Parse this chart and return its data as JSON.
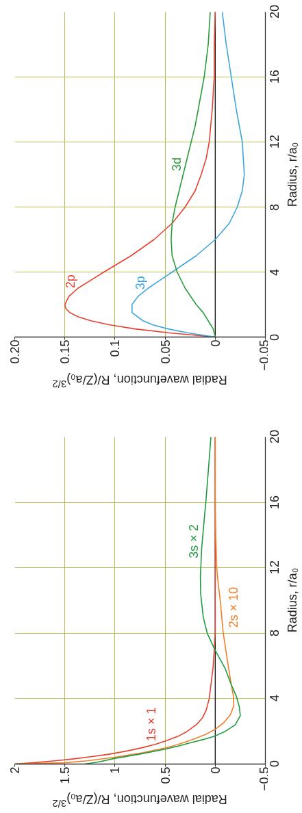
{
  "chart_data": [
    {
      "type": "line",
      "xlabel": "Radial wavefunction, R/(Z/a₀)$^{3/2}$",
      "ylabel": "Radius, r/a₀",
      "xlim": [
        0.2,
        -0.05
      ],
      "ylim": [
        0,
        20
      ],
      "xticks": [
        {
          "value": 0.2,
          "label": "0.20"
        },
        0.15,
        0.1,
        0.05,
        0,
        {
          "value": -0.05,
          "label": "−0.05"
        }
      ],
      "yticks": [
        0,
        4,
        8,
        12,
        16,
        20
      ],
      "grid": true,
      "ref_lines": [
        {
          "axis": "x",
          "value": 0,
          "color": "#111111"
        }
      ],
      "series": [
        {
          "name": "2p",
          "color": "#e8402f",
          "x": [
            0,
            0.045,
            0.08,
            0.105,
            0.124,
            0.137,
            0.145,
            0.149,
            0.15,
            0.146,
            0.137,
            0.124,
            0.111,
            0.084,
            0.061,
            0.043,
            0.03,
            0.02,
            0.014,
            0.009,
            0.006,
            0.003,
            0.001,
            0.001,
            0
          ],
          "values": [
            0,
            0.25,
            0.5,
            0.75,
            1,
            1.25,
            1.5,
            1.75,
            2,
            2.5,
            3,
            3.5,
            4,
            5,
            6,
            7,
            8,
            9,
            10,
            11,
            12,
            14,
            16,
            18,
            20
          ]
        },
        {
          "name": "3p",
          "color": "#3aa6dc",
          "x": [
            0,
            0.027,
            0.047,
            0.062,
            0.072,
            0.083,
            0.083,
            0.077,
            0.067,
            0.055,
            0.043,
            0.019,
            0,
            -0.014,
            -0.022,
            -0.027,
            -0.029,
            -0.028,
            -0.027,
            -0.024,
            -0.021,
            -0.016,
            -0.011,
            -0.007
          ],
          "values": [
            0,
            0.25,
            0.5,
            0.75,
            1,
            1.5,
            2,
            2.5,
            3,
            3.5,
            4,
            5,
            6,
            7,
            8,
            9,
            10,
            11,
            12,
            13,
            14,
            16,
            18,
            20
          ]
        },
        {
          "name": "3d",
          "color": "#2a9a3a",
          "x": [
            0,
            0.002,
            0.007,
            0.012,
            0.019,
            0.03,
            0.038,
            0.043,
            0.044,
            0.043,
            0.04,
            0.036,
            0.032,
            0.028,
            0.024,
            0.02,
            0.017,
            0.011,
            0.007,
            0.005
          ],
          "values": [
            0,
            0.5,
            1,
            1.5,
            2,
            3,
            4,
            5,
            6,
            7,
            8,
            9,
            10,
            11,
            12,
            13,
            14,
            16,
            18,
            20
          ]
        }
      ]
    },
    {
      "type": "line",
      "xlabel": "Radial wavefunction, R/(Z/a₀)$^{3/2}$",
      "ylabel": "Radius, r/a₀",
      "xlim": [
        2,
        -0.5
      ],
      "ylim": [
        0,
        20
      ],
      "xticks": [
        2,
        1.5,
        1,
        0.5,
        0,
        {
          "value": -0.5,
          "label": "−0.5"
        }
      ],
      "yticks": [
        0,
        4,
        8,
        12,
        16,
        20
      ],
      "grid": true,
      "ref_lines": [
        {
          "axis": "x",
          "value": 0,
          "color": "#111111"
        }
      ],
      "series": [
        {
          "name": "1s × 1",
          "color": "#e8402f",
          "x": [
            2.0,
            1.78,
            1.6,
            1.44,
            1.24,
            1.06,
            0.88,
            0.73,
            0.6,
            0.5,
            0.37,
            0.28,
            0.19,
            0.13,
            0.09,
            0.06,
            0.04,
            0.02,
            0.01,
            0,
            0,
            0,
            0,
            0,
            0,
            0
          ],
          "values": [
            0,
            0.1,
            0.2,
            0.3,
            0.45,
            0.6,
            0.8,
            1.0,
            1.2,
            1.4,
            1.7,
            2.0,
            2.4,
            2.8,
            3.3,
            4,
            5,
            6,
            7,
            8,
            10,
            12,
            14,
            16,
            18,
            20
          ]
        },
        {
          "name": "2s × 10",
          "color": "#f07f2a",
          "x": [
            2.0,
            1.5,
            1.28,
            1.0,
            0.72,
            0.5,
            0.37,
            0.25,
            0.1,
            0,
            -0.08,
            -0.15,
            -0.185,
            -0.18,
            -0.16,
            -0.13,
            -0.105,
            -0.08,
            -0.065,
            -0.05,
            -0.03,
            -0.015,
            -0.01,
            -0.005,
            0,
            0,
            0
          ],
          "values": [
            0,
            0.08,
            0.2,
            0.42,
            0.7,
            0.98,
            1.2,
            1.44,
            1.8,
            2.13,
            2.5,
            3.0,
            3.55,
            4.2,
            4.85,
            6,
            7,
            8,
            9,
            10,
            11,
            12,
            13,
            14,
            16,
            18,
            20
          ]
        },
        {
          "name": "3s × 2",
          "color": "#1f9a3f",
          "x": [
            1.3,
            1.15,
            1.0,
            0.76,
            0.5,
            0.37,
            0.25,
            0.12,
            0,
            -0.1,
            -0.2,
            -0.25,
            -0.24,
            -0.21,
            -0.16,
            -0.1,
            0,
            0.08,
            0.12,
            0.145,
            0.148,
            0.144,
            0.135,
            0.115,
            0.094,
            0.068,
            0.043
          ],
          "values": [
            0,
            0.15,
            0.35,
            0.6,
            0.91,
            1.1,
            1.3,
            1.5,
            1.72,
            2.0,
            2.4,
            2.97,
            3.5,
            4.16,
            4.85,
            5.83,
            6.95,
            8,
            9,
            10.4,
            11.5,
            12,
            13.2,
            14.6,
            16,
            18,
            20
          ]
        }
      ]
    }
  ]
}
